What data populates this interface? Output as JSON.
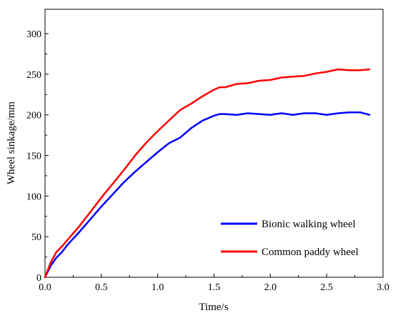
{
  "chart_data": {
    "type": "line",
    "title": "",
    "xlabel": "Time/s",
    "ylabel": "Wheel sinkage/mm",
    "xlim": [
      0.0,
      3.0
    ],
    "ylim": [
      0,
      330
    ],
    "xticks": [
      "0.0",
      "0.5",
      "1.0",
      "1.5",
      "2.0",
      "2.5",
      "3.0"
    ],
    "yticks": [
      "0",
      "50",
      "100",
      "150",
      "200",
      "250",
      "300"
    ],
    "grid": false,
    "legend_position": "bottom-right",
    "series": [
      {
        "name": "Bionic walking wheel",
        "color": "#0000ff",
        "x": [
          0.0,
          0.05,
          0.1,
          0.15,
          0.2,
          0.3,
          0.4,
          0.5,
          0.6,
          0.7,
          0.8,
          0.9,
          1.0,
          1.1,
          1.2,
          1.3,
          1.4,
          1.5,
          1.55,
          1.6,
          1.7,
          1.8,
          1.9,
          2.0,
          2.1,
          2.2,
          2.3,
          2.4,
          2.5,
          2.6,
          2.7,
          2.8,
          2.88
        ],
        "y": [
          0,
          14,
          24,
          31,
          40,
          55,
          71,
          87,
          102,
          117,
          130,
          142,
          154,
          165,
          172,
          184,
          193,
          199,
          201,
          201,
          200,
          202,
          201,
          200,
          202,
          200,
          202,
          202,
          200,
          202,
          203,
          203,
          200
        ]
      },
      {
        "name": "Common paddy wheel",
        "color": "#ff0000",
        "x": [
          0.0,
          0.05,
          0.1,
          0.15,
          0.2,
          0.3,
          0.4,
          0.5,
          0.6,
          0.7,
          0.8,
          0.9,
          1.0,
          1.1,
          1.2,
          1.3,
          1.4,
          1.5,
          1.55,
          1.6,
          1.7,
          1.8,
          1.9,
          2.0,
          2.1,
          2.2,
          2.3,
          2.4,
          2.5,
          2.6,
          2.7,
          2.8,
          2.88
        ],
        "y": [
          0,
          18,
          31,
          38,
          46,
          62,
          80,
          98,
          115,
          132,
          150,
          166,
          180,
          193,
          206,
          214,
          223,
          231,
          234,
          234,
          238,
          239,
          242,
          243,
          246,
          247,
          248,
          251,
          253,
          256,
          255,
          255,
          256
        ]
      }
    ]
  }
}
